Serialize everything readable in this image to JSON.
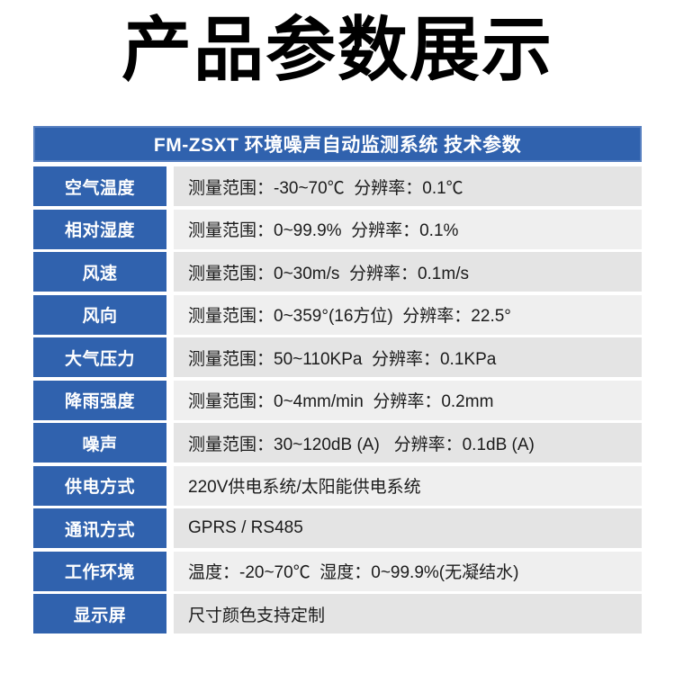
{
  "theme": {
    "accent_blue": "#3062AE",
    "header_border": "#567FC0",
    "row_dark_gray": "#E4E4E4",
    "row_light_gray": "#EFEFEF",
    "gap_white": "#FFFFFF",
    "value_text": "#1B1B1B",
    "title_black": "#000000"
  },
  "page": {
    "title": "产品参数展示"
  },
  "spec_table": {
    "header": "FM-ZSXT 环境噪声自动监测系统 技术参数",
    "rows": [
      {
        "label": "空气温度",
        "value": "测量范围：-30~70℃  分辨率：0.1℃"
      },
      {
        "label": "相对湿度",
        "value": "测量范围：0~99.9%  分辨率：0.1%"
      },
      {
        "label": "风速",
        "value": "测量范围：0~30m/s  分辨率：0.1m/s"
      },
      {
        "label": "风向",
        "value": "测量范围：0~359°(16方位)  分辨率：22.5°"
      },
      {
        "label": "大气压力",
        "value": "测量范围：50~110KPa  分辨率：0.1KPa"
      },
      {
        "label": "降雨强度",
        "value": "测量范围：0~4mm/min  分辨率：0.2mm"
      },
      {
        "label": "噪声",
        "value": "测量范围：30~120dB (A)   分辨率：0.1dB (A)"
      },
      {
        "label": "供电方式",
        "value": "220V供电系统/太阳能供电系统"
      },
      {
        "label": "通讯方式",
        "value": "GPRS / RS485"
      },
      {
        "label": "工作环境",
        "value": "温度：-20~70℃  湿度：0~99.9%(无凝结水)"
      },
      {
        "label": "显示屏",
        "value": "尺寸颜色支持定制"
      }
    ]
  }
}
